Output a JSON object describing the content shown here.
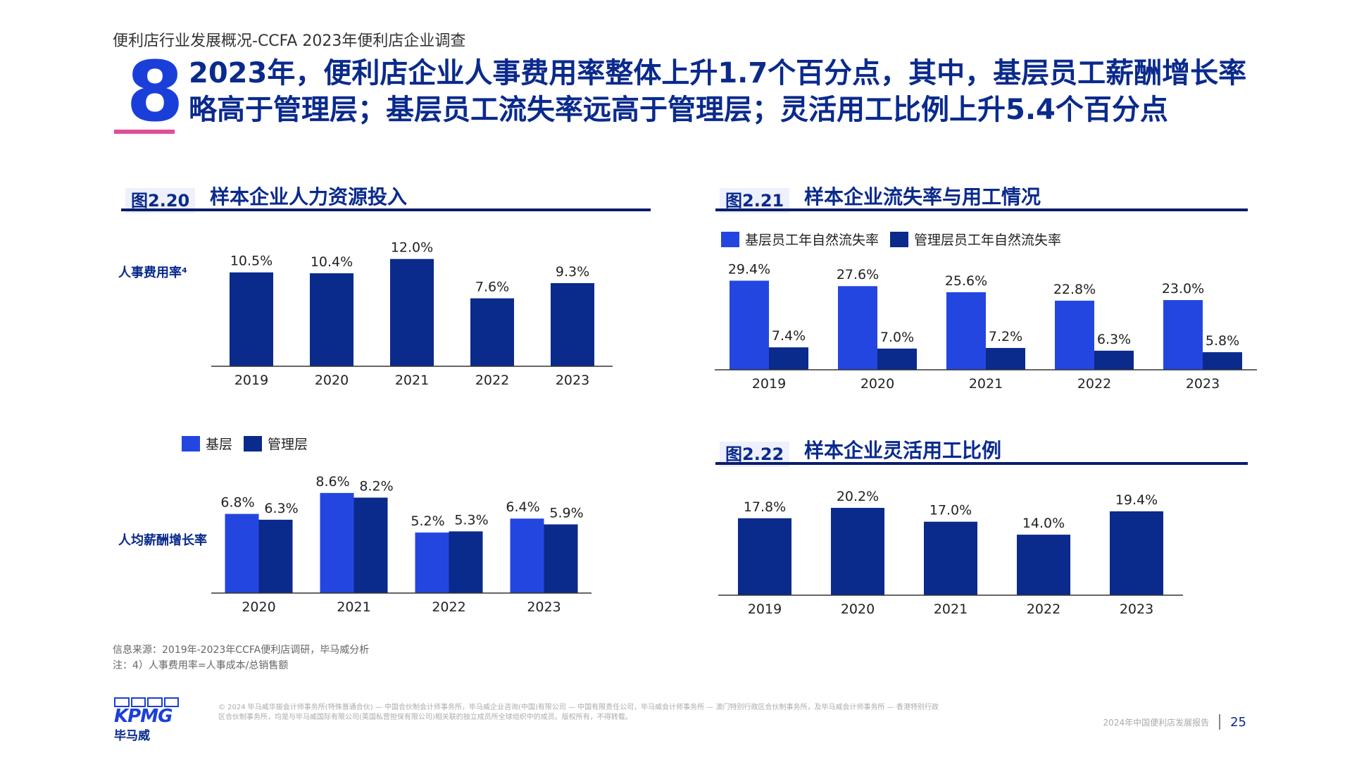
{
  "header": "便利店行业发展概况-CCFA 2023年便利店企业调查",
  "section_number": "8",
  "headline": "2023年，便利店企业人事费用率整体上升1.7个百分点，其中，基层员工薪酬增长率略高于管理层；基层员工流失率远高于管理层；灵活用工比例上升5.4个百分点",
  "figures": {
    "f220": {
      "tag": "图2.20",
      "title": "样本企业人力资源投入"
    },
    "f221": {
      "tag": "图2.21",
      "title": "样本企业流失率与用工情况"
    },
    "f222": {
      "tag": "图2.22",
      "title": "样本企业灵活用工比例"
    }
  },
  "colors": {
    "primary": "#0a2a8c",
    "accent": "#2446e0",
    "pink": "#e04e9a"
  },
  "chart_data": [
    {
      "id": "personnel_cost",
      "type": "bar",
      "ylabel": "人事费用率⁴",
      "categories": [
        "2019",
        "2020",
        "2021",
        "2022",
        "2023"
      ],
      "series": [
        {
          "values": [
            10.5,
            10.4,
            12.0,
            7.6,
            9.3
          ]
        }
      ],
      "labels": [
        "10.5%",
        "10.4%",
        "12.0%",
        "7.6%",
        "9.3%"
      ],
      "ylim": [
        0,
        13
      ]
    },
    {
      "id": "salary_growth",
      "type": "bar",
      "ylabel": "人均薪酬增长率",
      "categories": [
        "2020",
        "2021",
        "2022",
        "2023"
      ],
      "series": [
        {
          "name": "基层",
          "values": [
            6.8,
            8.6,
            5.2,
            6.4
          ],
          "labels": [
            "6.8%",
            "8.6%",
            "5.2%",
            "6.4%"
          ]
        },
        {
          "name": "管理层",
          "values": [
            6.3,
            8.2,
            5.3,
            5.9
          ],
          "labels": [
            "6.3%",
            "8.2%",
            "5.3%",
            "5.9%"
          ]
        }
      ],
      "ylim": [
        0,
        9.5
      ]
    },
    {
      "id": "attrition",
      "type": "bar",
      "categories": [
        "2019",
        "2020",
        "2021",
        "2022",
        "2023"
      ],
      "series": [
        {
          "name": "基层员工年自然流失率",
          "values": [
            29.4,
            27.6,
            25.6,
            22.8,
            23.0
          ],
          "labels": [
            "29.4%",
            "27.6%",
            "25.6%",
            "22.8%",
            "23.0%"
          ]
        },
        {
          "name": "管理层员工年自然流失率",
          "values": [
            7.4,
            7.0,
            7.2,
            6.3,
            5.8
          ],
          "labels": [
            "7.4%",
            "7.0%",
            "7.2%",
            "6.3%",
            "5.8%"
          ]
        }
      ],
      "ylim": [
        0,
        33
      ]
    },
    {
      "id": "flexible",
      "type": "bar",
      "categories": [
        "2019",
        "2020",
        "2021",
        "2022",
        "2023"
      ],
      "series": [
        {
          "values": [
            17.8,
            20.2,
            17.0,
            14.0,
            19.4
          ]
        }
      ],
      "labels": [
        "17.8%",
        "20.2%",
        "17.0%",
        "14.0%",
        "19.4%"
      ],
      "ylim": [
        0,
        22
      ]
    }
  ],
  "notes": {
    "source": "信息来源：2019年-2023年CCFA便利店调研，毕马威分析",
    "note": "注：4）人事费用率=人事成本/总销售额"
  },
  "footer": {
    "disclaimer": "© 2024 毕马威华振会计师事务所(特殊普通合伙) — 中国合伙制会计师事务所，毕马威企业咨询(中国)有限公司 — 中国有限责任公司，毕马威会计师事务所 — 澳门特别行政区合伙制事务所，及毕马威会计师事务所 — 香港特别行政区合伙制事务所，均是与毕马威国际有限公司(英国私营担保有限公司)相关联的独立成员所全球组织中的成员。版权所有，不得转载。",
    "brand": "KPMG",
    "brand_cn": "毕马威",
    "report": "2024年中国便利店发展报告",
    "page": "25"
  }
}
